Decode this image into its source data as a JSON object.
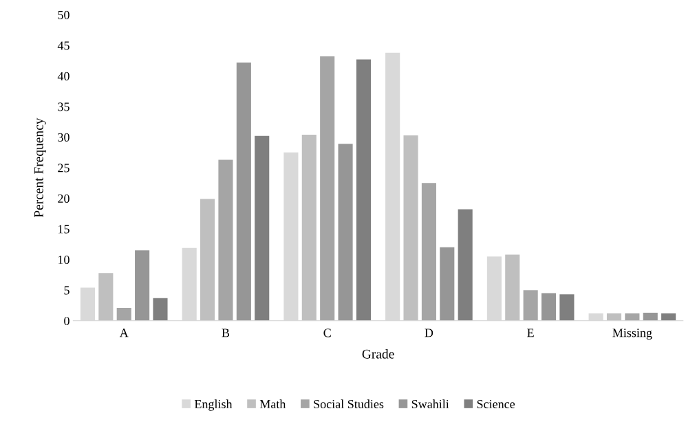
{
  "chart_data": {
    "type": "bar",
    "xlabel": "Grade",
    "ylabel": "Percent Frequency",
    "categories": [
      "A",
      "B",
      "C",
      "D",
      "E",
      "Missing"
    ],
    "series": [
      {
        "name": "English",
        "color": "#d9d9d9",
        "values": [
          5.4,
          11.9,
          27.5,
          43.8,
          10.5,
          1.2
        ]
      },
      {
        "name": "Math",
        "color": "#bfbfbf",
        "values": [
          7.8,
          19.9,
          30.4,
          30.3,
          10.8,
          1.2
        ]
      },
      {
        "name": "Social Studies",
        "color": "#a5a5a5",
        "values": [
          2.1,
          26.3,
          43.2,
          22.5,
          5.0,
          1.2
        ]
      },
      {
        "name": "Swahili",
        "color": "#969696",
        "values": [
          11.5,
          42.2,
          28.9,
          12.0,
          4.5,
          1.3
        ]
      },
      {
        "name": "Science",
        "color": "#7f7f7f",
        "values": [
          3.7,
          30.2,
          42.7,
          18.2,
          4.3,
          1.2
        ]
      }
    ],
    "ylim": [
      0,
      50
    ],
    "yticks": [
      0,
      5,
      10,
      15,
      20,
      25,
      30,
      35,
      40,
      45,
      50
    ],
    "grid": false,
    "legend": "bottom"
  }
}
